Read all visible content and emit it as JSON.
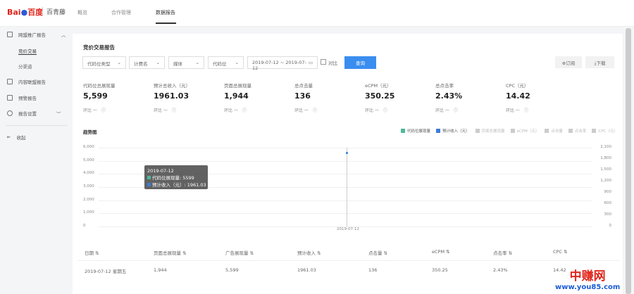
{
  "header": {
    "logo": "Bai百度",
    "brand": "百青藤",
    "nav": [
      {
        "label": "概览"
      },
      {
        "label": "合作管理"
      },
      {
        "label": "数据报告",
        "active": true
      }
    ]
  },
  "sidebar": {
    "items": [
      {
        "label": "网盟推广报告",
        "icon": "report-icon",
        "expanded": true,
        "children": [
          {
            "label": "竞价交易",
            "active": true
          },
          {
            "label": "分渠道"
          }
        ]
      },
      {
        "label": "内容联盟报告",
        "icon": "content-icon"
      },
      {
        "label": "预警报告",
        "icon": "alert-icon"
      },
      {
        "label": "报告设置",
        "icon": "gear-icon"
      }
    ],
    "collapse": "收起"
  },
  "report": {
    "title": "竞价交易报告",
    "filters": [
      "代码位类型",
      "计费名",
      "媒体",
      "代码位"
    ],
    "date_range": "2019-07-12 ~ 2019-07-12",
    "compare_label": "对比",
    "compare_checked": false,
    "query_label": "查询",
    "subscribe_label": "订阅",
    "download_label": "下载",
    "metrics": [
      {
        "label": "代码位总展现量",
        "value": "5,599",
        "change": "环比 一"
      },
      {
        "label": "预计总收入（元）",
        "value": "1961.03",
        "change": "环比 一"
      },
      {
        "label": "页面总展现量",
        "value": "1,944",
        "change": "环比 一"
      },
      {
        "label": "总点击量",
        "value": "136",
        "change": "环比 一"
      },
      {
        "label": "eCPM（元）",
        "value": "350.25",
        "change": "环比 一"
      },
      {
        "label": "总点击率",
        "value": "2.43%",
        "change": "环比 一"
      },
      {
        "label": "CPC（元）",
        "value": "14.42",
        "change": "环比 一"
      }
    ]
  },
  "trend": {
    "title": "趋势图",
    "legend": [
      {
        "name": "代码位展现量",
        "color": "#4cb89a",
        "active": true
      },
      {
        "name": "预计收入（元）",
        "color": "#3a7fd5",
        "active": true
      },
      {
        "name": "页面总展现量",
        "color": "#ccc"
      },
      {
        "name": "eCPM（元）",
        "color": "#ccc"
      },
      {
        "name": "点击量",
        "color": "#ccc"
      },
      {
        "name": "点击率",
        "color": "#ccc"
      },
      {
        "name": "CPC（元）",
        "color": "#ccc"
      }
    ],
    "tooltip": {
      "date": "2019-07-12",
      "line1": "代码位展现量: 5599",
      "line2": "预计收入（元）: 1961.03"
    }
  },
  "chart_data": {
    "type": "line",
    "x": [
      "2019-07-12"
    ],
    "series": [
      {
        "name": "代码位展现量",
        "values": [
          5599
        ],
        "axis": "left"
      },
      {
        "name": "预计收入（元）",
        "values": [
          1961.03
        ],
        "axis": "right"
      }
    ],
    "y_left_ticks": [
      "0",
      "1,000",
      "2,000",
      "3,000",
      "4,000",
      "5,000",
      "6,000"
    ],
    "ylim_left": [
      0,
      6000
    ],
    "y_right_ticks": [
      "0",
      "300",
      "600",
      "900",
      "1,200",
      "1,500",
      "1,800",
      "2,100"
    ],
    "ylim_right": [
      0,
      2100
    ],
    "x_ticks": [
      "2019-07-12"
    ],
    "grid": true,
    "legend": "top-right"
  },
  "table": {
    "headers": [
      "日期 ⇅",
      "页面总展现量 ⇅",
      "广告展现量 ⇅",
      "预计收入 ⇅",
      "点击量 ⇅",
      "eCPM ⇅",
      "点击率 ⇅",
      "CPC ⇅"
    ],
    "rows": [
      [
        "2019-07-12 星期五",
        "1,944",
        "5,599",
        "1961.03",
        "136",
        "350.25",
        "2.43%",
        "14.42"
      ]
    ]
  },
  "watermark": {
    "line1": "中赚网",
    "line2": "www.you85.com"
  }
}
